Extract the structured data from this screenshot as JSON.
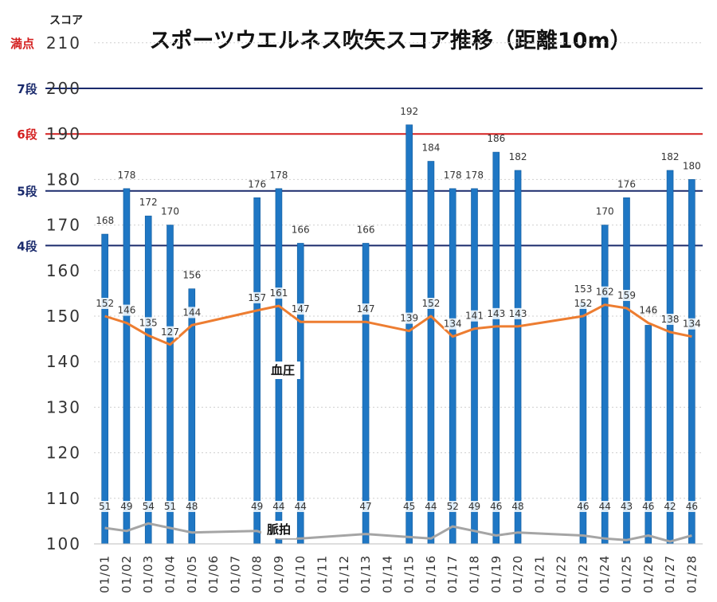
{
  "chart_data": {
    "type": "bar",
    "title": "スポーツウエルネス吹矢スコア推移（距離10m）",
    "ylabel": "スコア",
    "ylim": [
      100,
      210
    ],
    "yticks": [
      100,
      110,
      120,
      130,
      140,
      150,
      160,
      170,
      180,
      190,
      200,
      210
    ],
    "categories": [
      "01/01",
      "01/02",
      "01/03",
      "01/04",
      "01/05",
      "01/06",
      "01/07",
      "01/08",
      "01/09",
      "01/10",
      "01/11",
      "01/12",
      "01/13",
      "01/14",
      "01/15",
      "01/16",
      "01/17",
      "01/18",
      "01/19",
      "01/20",
      "01/21",
      "01/22",
      "01/23",
      "01/24",
      "01/25",
      "01/26",
      "01/27",
      "01/28"
    ],
    "bar_values": [
      168,
      178,
      172,
      170,
      156,
      null,
      null,
      176,
      178,
      166,
      null,
      null,
      166,
      null,
      192,
      184,
      178,
      178,
      186,
      182,
      null,
      null,
      153,
      170,
      176,
      148,
      182,
      180
    ],
    "reference_lines": [
      {
        "label": "満点",
        "value": 210,
        "color": "#d42020"
      },
      {
        "label": "7段",
        "value": 200,
        "color": "#1a2a6c"
      },
      {
        "label": "6段",
        "value": 190,
        "color": "#d42020"
      },
      {
        "label": "5段",
        "value": 177.5,
        "color": "#1a2a6c"
      },
      {
        "label": "4段",
        "value": 165.5,
        "color": "#1a2a6c"
      }
    ],
    "series": [
      {
        "name": "血圧",
        "color": "#ed7d31",
        "values": [
          152,
          146,
          135,
          127,
          144,
          null,
          null,
          157,
          161,
          147,
          null,
          null,
          147,
          null,
          139,
          152,
          134,
          141,
          143,
          143,
          null,
          null,
          152,
          162,
          159,
          146,
          138,
          134
        ]
      },
      {
        "name": "脈拍",
        "color": "#a5a5a5",
        "values": [
          51,
          49,
          54,
          51,
          48,
          null,
          null,
          49,
          44,
          44,
          null,
          null,
          47,
          null,
          45,
          44,
          52,
          49,
          46,
          48,
          null,
          null,
          46,
          44,
          43,
          46,
          42,
          46
        ]
      }
    ],
    "colors": {
      "bar": "#1f77c4",
      "bar_edge": "#0f5a9c",
      "grid": "#cfcfcf"
    }
  }
}
